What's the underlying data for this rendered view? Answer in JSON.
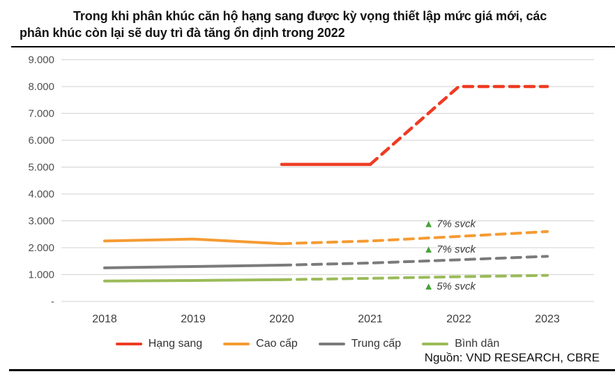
{
  "title": {
    "line1": "Trong khi phân khúc căn hộ hạng sang được kỳ vọng thiết lập mức giá mới, các",
    "line2": "phân khúc còn lại sẽ duy trì đà tăng ổn định trong 2022"
  },
  "source": "Nguồn: VND RESEARCH, CBRE",
  "colors": {
    "grid": "#d9d9d9",
    "annotation_triangle": "#47a43a",
    "title_text": "#141414",
    "axis_text": "#4f4f4f"
  },
  "chart_data": {
    "type": "line",
    "x": [
      2018,
      2019,
      2020,
      2021,
      2022,
      2023
    ],
    "ylim": [
      0,
      9000
    ],
    "grid": true,
    "legend_position": "bottom",
    "yticks": [
      {
        "label": "9.000",
        "value": 9000
      },
      {
        "label": "8.000",
        "value": 8000
      },
      {
        "label": "7.000",
        "value": 7000
      },
      {
        "label": "6.000",
        "value": 6000
      },
      {
        "label": "5.000",
        "value": 5000
      },
      {
        "label": "4.000",
        "value": 4000
      },
      {
        "label": "3.000",
        "value": 3000
      },
      {
        "label": "2.000",
        "value": 2000
      },
      {
        "label": "1.000",
        "value": 1000
      },
      {
        "label": "-",
        "value": 0
      }
    ],
    "series": [
      {
        "id": "hang-sang",
        "name": "Hạng sang",
        "color": "#ee3b23",
        "width": 4.5,
        "values": [
          null,
          null,
          5100,
          5100,
          8000,
          8000
        ],
        "solid_until": 2021
      },
      {
        "id": "cao-cap",
        "name": "Cao cấp",
        "color": "#f59b33",
        "width": 4,
        "values": [
          2250,
          2320,
          2150,
          2250,
          2420,
          2600
        ],
        "solid_until": 2020
      },
      {
        "id": "trung-cap",
        "name": "Trung cấp",
        "color": "#7b7b7b",
        "width": 4,
        "values": [
          1250,
          1300,
          1350,
          1430,
          1550,
          1680
        ],
        "solid_until": 2020
      },
      {
        "id": "binh-dan",
        "name": "Bình dân",
        "color": "#9bbb59",
        "width": 4,
        "values": [
          760,
          780,
          810,
          860,
          920,
          970
        ],
        "solid_until": 2020
      }
    ],
    "annotations": [
      {
        "marker": "▲",
        "text": "7% svck",
        "x": 2021.6,
        "y": 2900
      },
      {
        "marker": "▲",
        "text": "7% svck",
        "x": 2021.6,
        "y": 1950
      },
      {
        "marker": "▲",
        "text": "5% svck",
        "x": 2021.6,
        "y": 570
      }
    ]
  }
}
